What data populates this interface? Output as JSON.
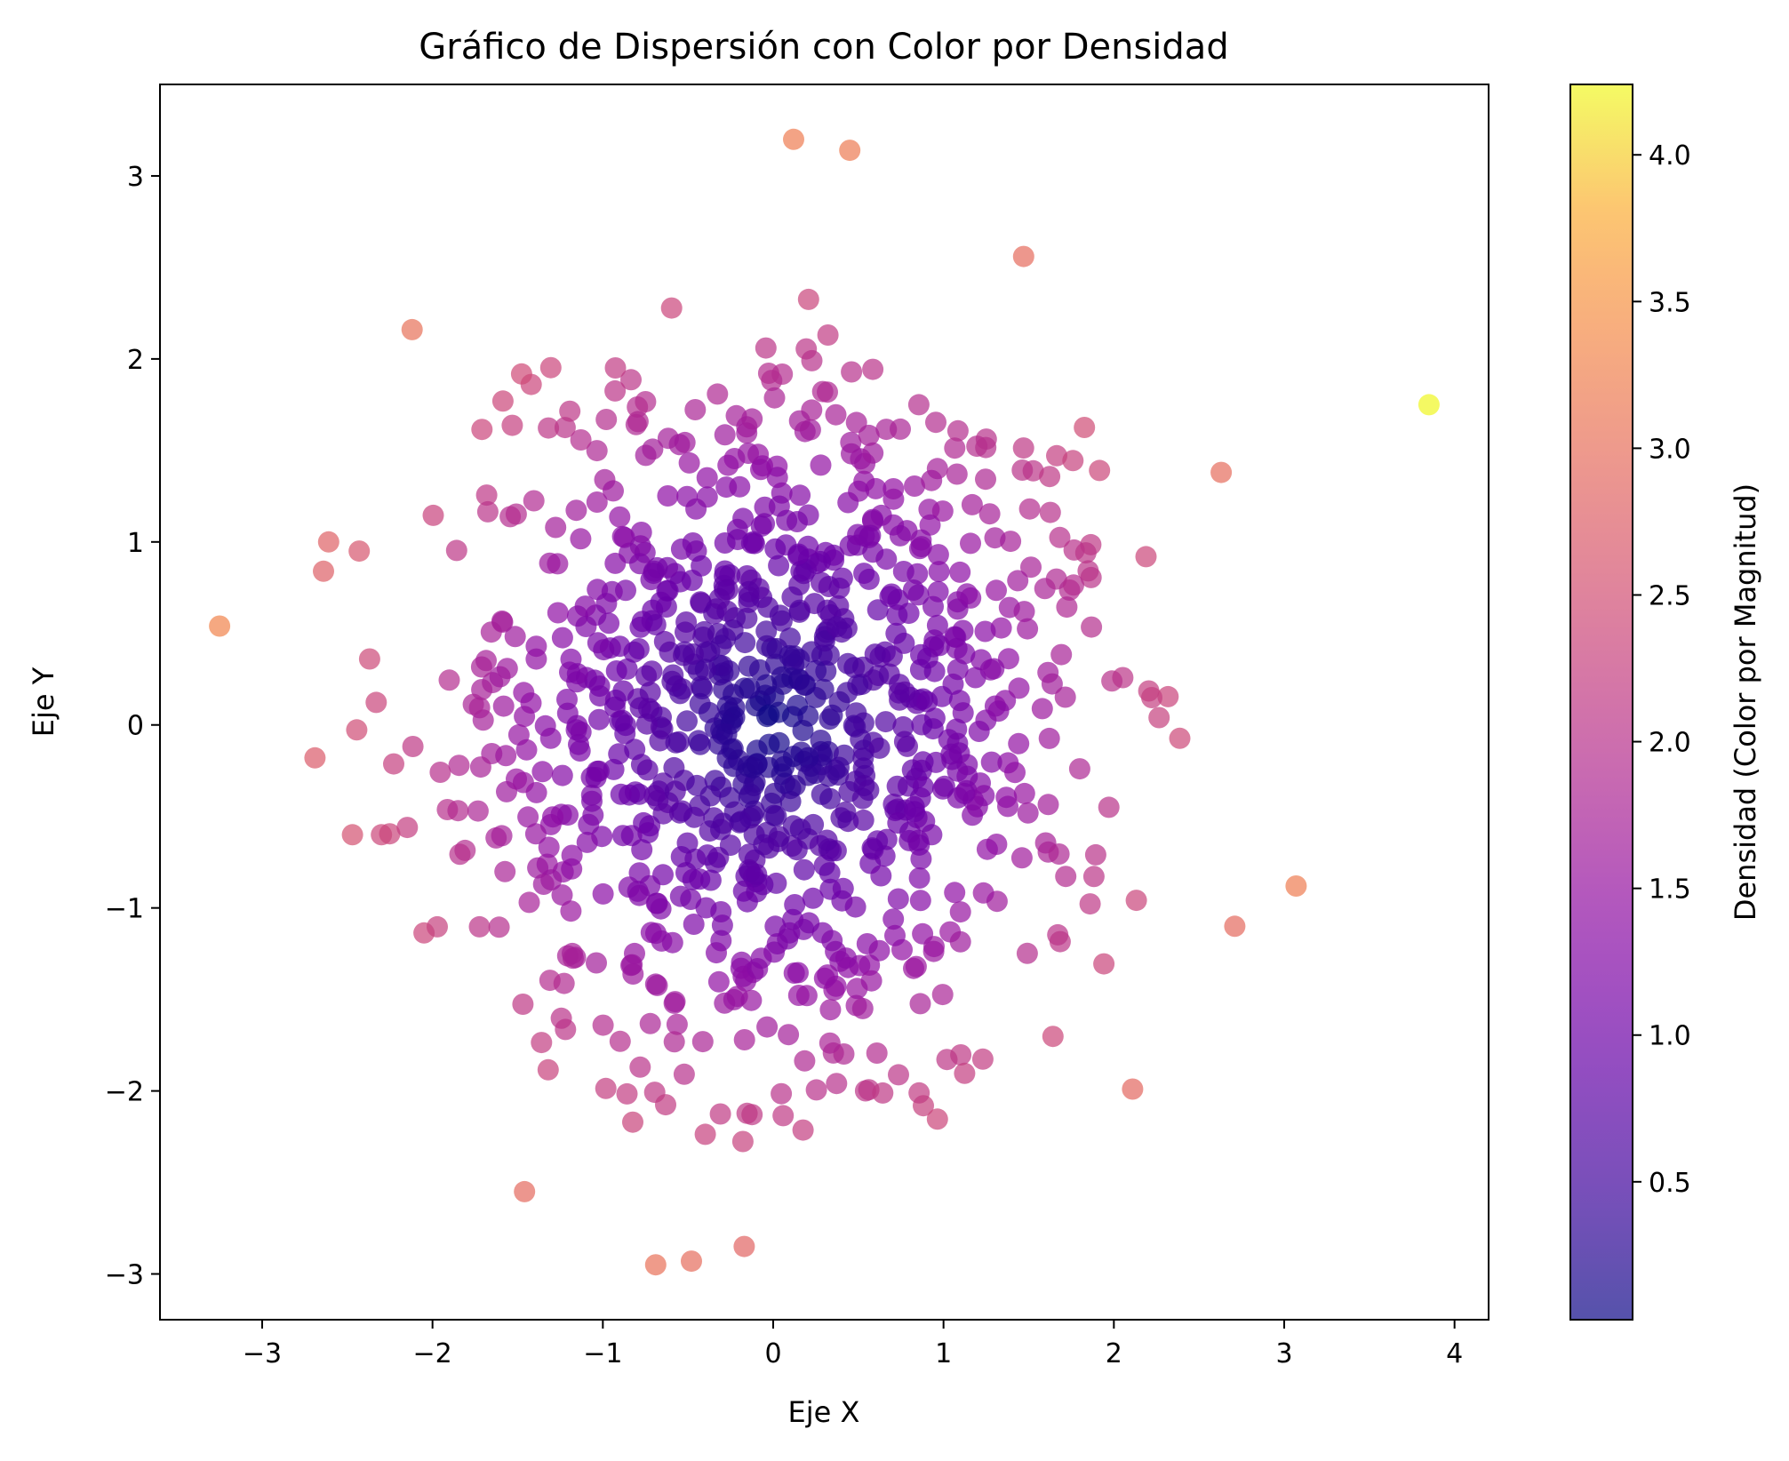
{
  "chart_data": {
    "type": "scatter",
    "title": "Gráfico de Dispersión con Color por Densidad",
    "xlabel": "Eje X",
    "ylabel": "Eje Y",
    "xlim": [
      -3.6,
      4.2
    ],
    "ylim": [
      -3.25,
      3.5
    ],
    "x_ticks": [
      -3,
      -2,
      -1,
      0,
      1,
      2,
      3,
      4
    ],
    "x_tick_labels": [
      "−3",
      "−2",
      "−1",
      "0",
      "1",
      "2",
      "3",
      "4"
    ],
    "y_ticks": [
      -3,
      -2,
      -1,
      0,
      1,
      2,
      3
    ],
    "y_tick_labels": [
      "−3",
      "−2",
      "−1",
      "0",
      "1",
      "2",
      "3"
    ],
    "grid": false,
    "colormap": "plasma",
    "point_alpha": 0.7,
    "color_value": "magnitude sqrt(x^2 + y^2)",
    "colorbar": {
      "label": "Densidad (Color por Magnitud)",
      "range": [
        0.03,
        4.24
      ],
      "ticks": [
        0.5,
        1.0,
        1.5,
        2.0,
        2.5,
        3.0,
        3.5,
        4.0
      ],
      "tick_labels": [
        "0.5",
        "1.0",
        "1.5",
        "2.0",
        "2.5",
        "3.0",
        "3.5",
        "4.0"
      ]
    },
    "point_count": 1000,
    "notable_points": [
      {
        "x": 3.85,
        "y": 1.75
      },
      {
        "x": -3.25,
        "y": 0.54
      },
      {
        "x": 3.07,
        "y": -0.88
      },
      {
        "x": 0.12,
        "y": 3.2
      },
      {
        "x": 0.45,
        "y": 3.14
      },
      {
        "x": -0.69,
        "y": -2.95
      },
      {
        "x": -0.48,
        "y": -2.93
      },
      {
        "x": -2.12,
        "y": 2.16
      },
      {
        "x": 2.63,
        "y": 1.38
      },
      {
        "x": 2.71,
        "y": -1.1
      },
      {
        "x": -2.64,
        "y": 0.84
      },
      {
        "x": -2.61,
        "y": 1.0
      },
      {
        "x": -2.43,
        "y": 0.95
      },
      {
        "x": -2.69,
        "y": -0.18
      },
      {
        "x": -2.3,
        "y": -0.6
      },
      {
        "x": -2.47,
        "y": -0.6
      },
      {
        "x": 2.11,
        "y": -1.99
      },
      {
        "x": 1.47,
        "y": 2.56
      },
      {
        "x": -1.46,
        "y": -2.55
      },
      {
        "x": -0.17,
        "y": -2.85
      }
    ]
  }
}
